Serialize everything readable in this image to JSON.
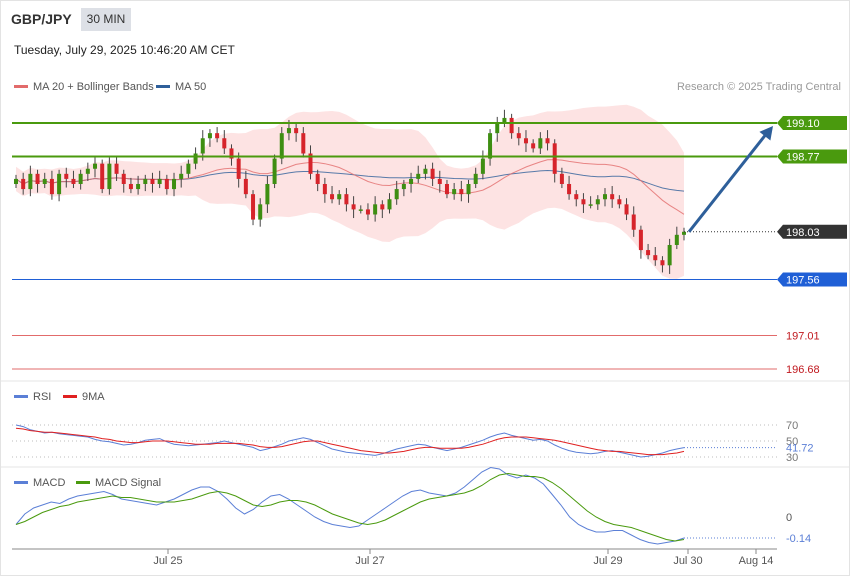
{
  "header": {
    "pair": "GBP/JPY",
    "timeframe": "30 MIN",
    "datetime": "Tuesday, July 29, 2025 10:46:20 AM CET"
  },
  "legend": {
    "ma20": "MA 20 + Bollinger Bands",
    "ma50": "MA 50",
    "copyright": "Research © 2025 Trading Central",
    "rsi": "RSI",
    "rsi_ma": "9MA",
    "macd": "MACD",
    "macd_signal": "MACD Signal"
  },
  "colors": {
    "resistance": "#4a9a0e",
    "support": "#1f5fd6",
    "weak_level": "#e26b6b",
    "last_price": "#333333",
    "arrow": "#2e5f9a",
    "bollinger_fill": "#fde3e3",
    "ma20": "#e26b6b",
    "ma50": "#2e5f9a",
    "rsi": "#5b7fd6",
    "rsi_ma": "#e02020",
    "macd": "#5b7fd6",
    "macd_signal": "#4a9a0e"
  },
  "chart_data": [
    {
      "type": "candlestick",
      "x_ticks": [
        "Jul 25",
        "Jul 27",
        "Jul 29",
        "Jul 30",
        "Aug 14"
      ],
      "price_levels": [
        {
          "value": 199.1,
          "label": "199.10",
          "kind": "resistance"
        },
        {
          "value": 198.77,
          "label": "198.77",
          "kind": "resistance"
        },
        {
          "value": 198.03,
          "label": "198.03",
          "kind": "last"
        },
        {
          "value": 197.56,
          "label": "197.56",
          "kind": "support"
        },
        {
          "value": 197.01,
          "label": "197.01",
          "kind": "weak"
        },
        {
          "value": 196.68,
          "label": "196.68",
          "kind": "weak"
        }
      ],
      "series": [
        {
          "name": "MA 20 + Bollinger Bands"
        },
        {
          "name": "MA 50"
        }
      ],
      "closes": [
        198.55,
        198.45,
        198.6,
        198.5,
        198.55,
        198.4,
        198.6,
        198.55,
        198.5,
        198.6,
        198.65,
        198.7,
        198.45,
        198.7,
        198.6,
        198.5,
        198.45,
        198.5,
        198.55,
        198.5,
        198.55,
        198.45,
        198.55,
        198.6,
        198.7,
        198.8,
        198.95,
        199.0,
        198.95,
        198.85,
        198.75,
        198.55,
        198.4,
        198.15,
        198.3,
        198.5,
        198.75,
        199.0,
        199.05,
        199.0,
        198.8,
        198.6,
        198.5,
        198.4,
        198.35,
        198.4,
        198.3,
        198.25,
        198.25,
        198.2,
        198.3,
        198.25,
        198.35,
        198.45,
        198.5,
        198.55,
        198.6,
        198.65,
        198.55,
        198.5,
        198.4,
        198.45,
        198.4,
        198.5,
        198.6,
        198.75,
        199.0,
        199.1,
        199.15,
        199.0,
        198.95,
        198.9,
        198.85,
        198.95,
        198.9,
        198.6,
        198.5,
        198.4,
        198.35,
        198.3,
        198.3,
        198.35,
        198.4,
        198.35,
        198.3,
        198.2,
        198.05,
        197.85,
        197.8,
        197.75,
        197.7,
        197.9,
        198.0,
        198.03
      ]
    },
    {
      "type": "line",
      "name": "RSI",
      "levels": [
        70,
        50,
        30
      ],
      "last": 41.72,
      "last_label": "41.72",
      "series": [
        {
          "name": "RSI",
          "values": [
            70,
            68,
            64,
            62,
            60,
            61,
            59,
            58,
            57,
            56,
            55,
            52,
            50,
            49,
            47,
            45,
            46,
            48,
            51,
            52,
            53,
            49,
            46,
            45,
            44,
            45,
            46,
            47,
            48,
            50,
            48,
            46,
            44,
            42,
            38,
            40,
            43,
            46,
            50,
            52,
            54,
            52,
            48,
            44,
            40,
            38,
            36,
            35,
            34,
            33,
            32,
            34,
            37,
            40,
            42,
            44,
            46,
            45,
            42,
            40,
            38,
            40,
            42,
            45,
            48,
            51,
            55,
            58,
            60,
            57,
            55,
            53,
            51,
            52,
            50,
            45,
            41,
            38,
            36,
            35,
            34,
            35,
            37,
            38,
            36,
            34,
            32,
            30,
            31,
            33,
            35,
            38,
            40,
            41.72
          ]
        },
        {
          "name": "9MA",
          "values": [
            66,
            65,
            63,
            62,
            61,
            61,
            60,
            59,
            58,
            57,
            56,
            55,
            53,
            52,
            50,
            49,
            48,
            48,
            49,
            50,
            50,
            50,
            49,
            48,
            47,
            46,
            46,
            46,
            47,
            47,
            47,
            47,
            46,
            45,
            43,
            42,
            42,
            43,
            45,
            47,
            49,
            50,
            50,
            48,
            46,
            44,
            42,
            40,
            38,
            37,
            36,
            35,
            35,
            36,
            37,
            39,
            41,
            42,
            42,
            41,
            41,
            41,
            41,
            42,
            44,
            46,
            49,
            52,
            54,
            55,
            55,
            55,
            54,
            53,
            52,
            51,
            49,
            47,
            45,
            43,
            41,
            39,
            38,
            37,
            37,
            36,
            35,
            34,
            33,
            33,
            33,
            34,
            35,
            37
          ]
        }
      ]
    },
    {
      "type": "line",
      "name": "MACD",
      "zero_label": "0",
      "last": -0.14,
      "last_label": "-0.14",
      "series": [
        {
          "name": "MACD",
          "values": [
            -0.05,
            0.02,
            0.06,
            0.08,
            0.1,
            0.09,
            0.12,
            0.14,
            0.15,
            0.16,
            0.17,
            0.15,
            0.12,
            0.11,
            0.1,
            0.09,
            0.08,
            0.1,
            0.12,
            0.15,
            0.18,
            0.2,
            0.2,
            0.17,
            0.12,
            0.06,
            0.02,
            0.05,
            0.1,
            0.14,
            0.15,
            0.12,
            0.08,
            0.04,
            0.0,
            -0.03,
            -0.05,
            -0.06,
            -0.07,
            -0.06,
            -0.02,
            0.02,
            0.06,
            0.1,
            0.14,
            0.17,
            0.18,
            0.16,
            0.15,
            0.14,
            0.16,
            0.2,
            0.25,
            0.3,
            0.33,
            0.32,
            0.28,
            0.26,
            0.28,
            0.26,
            0.22,
            0.15,
            0.08,
            0.0,
            -0.05,
            -0.08,
            -0.1,
            -0.1,
            -0.09,
            -0.09,
            -0.12,
            -0.15,
            -0.17,
            -0.18,
            -0.17,
            -0.16,
            -0.14
          ]
        },
        {
          "name": "MACD Signal",
          "values": [
            -0.05,
            -0.03,
            0.0,
            0.03,
            0.05,
            0.07,
            0.08,
            0.1,
            0.11,
            0.12,
            0.13,
            0.14,
            0.13,
            0.13,
            0.12,
            0.11,
            0.1,
            0.1,
            0.1,
            0.11,
            0.12,
            0.14,
            0.16,
            0.17,
            0.16,
            0.14,
            0.11,
            0.08,
            0.07,
            0.08,
            0.1,
            0.11,
            0.11,
            0.1,
            0.08,
            0.05,
            0.02,
            0.0,
            -0.02,
            -0.04,
            -0.05,
            -0.04,
            -0.02,
            0.01,
            0.04,
            0.07,
            0.1,
            0.12,
            0.13,
            0.14,
            0.15,
            0.16,
            0.18,
            0.21,
            0.25,
            0.28,
            0.29,
            0.28,
            0.27,
            0.27,
            0.26,
            0.23,
            0.19,
            0.14,
            0.09,
            0.04,
            0.0,
            -0.03,
            -0.05,
            -0.06,
            -0.07,
            -0.09,
            -0.11,
            -0.13,
            -0.15,
            -0.16,
            -0.15
          ]
        }
      ]
    }
  ]
}
